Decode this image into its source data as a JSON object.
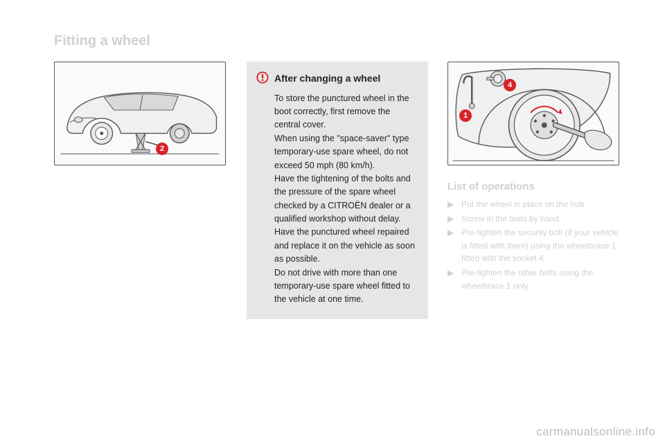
{
  "title": "Fitting a wheel",
  "left_illustration": {
    "badge_2": "2",
    "colors": {
      "stroke": "#555555",
      "fill_light": "#e8e8e8",
      "fill_mid": "#cfcfcf",
      "badge_bg": "#d8232a",
      "badge_text": "#ffffff"
    }
  },
  "warning": {
    "title": "After changing a wheel",
    "body": "To store the punctured wheel in the boot correctly, first remove the central cover.\nWhen using the \"space-saver\" type temporary-use spare wheel, do not exceed 50 mph (80 km/h).\nHave the tightening of the bolts and the pressure of the spare wheel checked by a CITROËN dealer or a qualified workshop without delay.\nHave the punctured wheel repaired and replace it on the vehicle as soon as possible.\nDo not drive with more than one temporary-use spare wheel fitted to the vehicle at one time.",
    "icon_colors": {
      "ring": "#d8232a",
      "mark": "#d8232a"
    },
    "box_bg": "#e6e6e6",
    "text_color": "#222222"
  },
  "right_illustration": {
    "badge_1": "1",
    "badge_4": "4",
    "colors": {
      "stroke": "#555555",
      "fill_light": "#e8e8e8",
      "fill_mid": "#cfcfcf",
      "badge_bg": "#d8232a"
    }
  },
  "operations": {
    "heading": "List of operations",
    "arrow": "▶",
    "items": [
      "Put the wheel in place on the hub.",
      "Screw in the bolts by hand.",
      "Pre-tighten the security bolt (if your vehicle is fitted with them) using the wheelbrace 1 fitted with the socket 4.",
      "Pre-tighten the other bolts using the wheelbrace 1 only."
    ]
  },
  "watermark": "carmanualsonline.info"
}
